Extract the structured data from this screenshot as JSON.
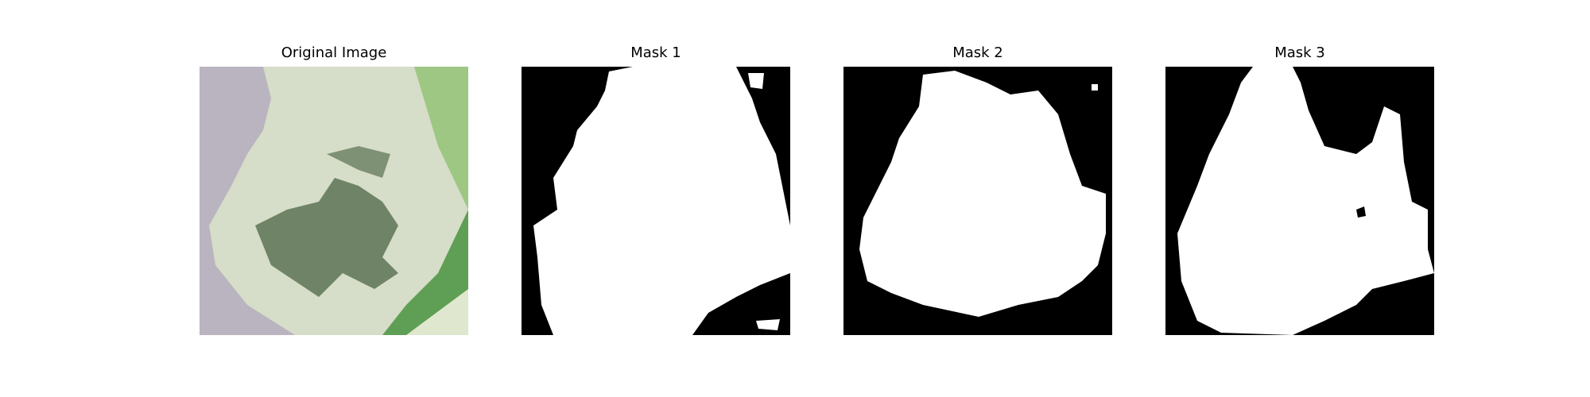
{
  "figure": {
    "panels": [
      {
        "title": "Original Image",
        "kind": "photo"
      },
      {
        "title": "Mask 1",
        "kind": "mask"
      },
      {
        "title": "Mask 2",
        "kind": "mask"
      },
      {
        "title": "Mask 3",
        "kind": "mask"
      }
    ]
  },
  "colors": {
    "mask_background": "#000000",
    "mask_foreground": "#ffffff",
    "photo_backdrop": "#b9b4bf",
    "leaf_light": "#d6ddc8",
    "leaf_dark": "#6f8466",
    "leaf_green": "#5f9f55"
  }
}
